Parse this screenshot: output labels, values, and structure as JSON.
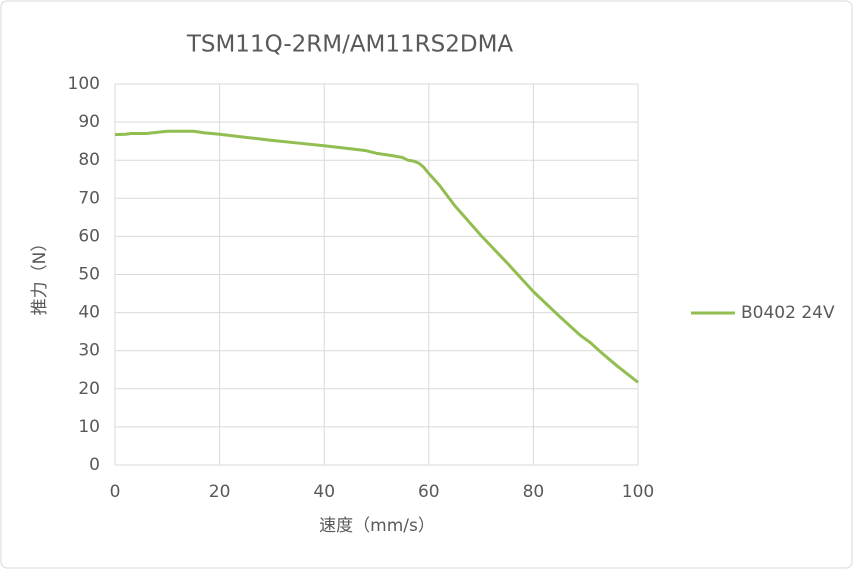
{
  "chart_data": {
    "type": "line",
    "title": "TSM11Q-2RM/AM11RS2DMA",
    "x_label": "速度（mm/s）",
    "y_label": "推力（N）",
    "x": [
      0,
      2,
      3,
      6,
      8,
      10,
      15,
      17,
      20,
      25,
      30,
      35,
      40,
      45,
      48,
      50,
      53,
      55,
      56,
      57,
      58,
      59,
      60,
      62,
      65,
      70,
      75,
      80,
      85,
      89,
      91,
      93,
      96,
      100
    ],
    "series": [
      {
        "name": "B0402 24V",
        "color": "#92bd50",
        "values": [
          86.7,
          86.8,
          87,
          87,
          87.3,
          87.6,
          87.6,
          87.2,
          86.8,
          86,
          85.2,
          84.5,
          83.8,
          83,
          82.5,
          81.8,
          81.2,
          80.7,
          80,
          79.8,
          79.3,
          78.2,
          76.5,
          73.5,
          68,
          60.2,
          53,
          45.5,
          39,
          34,
          32,
          29.5,
          26,
          21.7
        ]
      }
    ],
    "xlim": [
      0,
      100
    ],
    "xticks": [
      0,
      20,
      40,
      60,
      80,
      100
    ],
    "ylim": [
      0,
      100
    ],
    "yticks": [
      0,
      10,
      20,
      30,
      40,
      50,
      60,
      70,
      80,
      90,
      100
    ],
    "grid": true,
    "legend": "right"
  }
}
